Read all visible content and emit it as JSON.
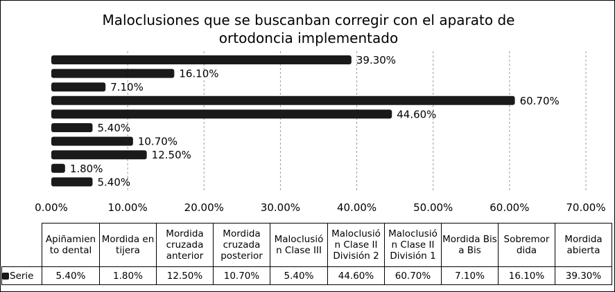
{
  "chart_data": {
    "type": "bar",
    "orientation": "horizontal",
    "title": "Maloclusiones que se buscanban corregir con el aparato de ortodoncia implementado",
    "categories": [
      "Apiñamien to dental",
      "Mordida en tijera",
      "Mordida cruzada anterior",
      "Mordida cruzada posterior",
      "Maloclusió n Clase III",
      "Maloclusió n Clase II División 2",
      "Maloclusió n Clase II División 1",
      "Mordida Bis a Bis",
      "Sobremor dida",
      "Mordida abierta"
    ],
    "series": [
      {
        "name": "Serie",
        "values": [
          5.4,
          1.8,
          12.5,
          10.7,
          5.4,
          44.6,
          60.7,
          7.1,
          16.1,
          39.3
        ],
        "labels": [
          "5.40%",
          "1.80%",
          "12.50%",
          "10.70%",
          "5.40%",
          "44.60%",
          "60.70%",
          "7.10%",
          "16.10%",
          "39.30%"
        ]
      }
    ],
    "x_ticks": [
      "0.00%",
      "10.00%",
      "20.00%",
      "30.00%",
      "40.00%",
      "50.00%",
      "60.00%",
      "70.00%"
    ],
    "xlim": [
      0,
      70
    ],
    "grid": "vertical-dashed",
    "legend": "data-table",
    "bar_color": "#1a1a1a"
  }
}
